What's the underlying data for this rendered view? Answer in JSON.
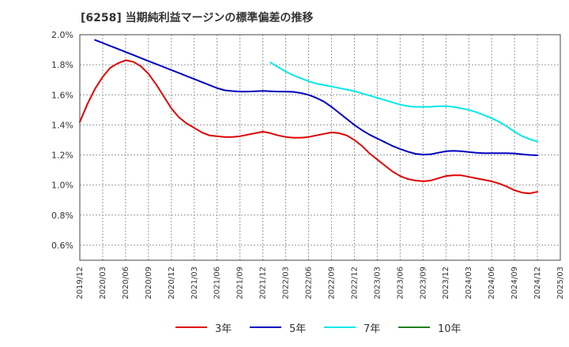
{
  "header": {
    "title": "[6258]  当期純利益マージンの標準偏差の推移"
  },
  "chart_data": {
    "type": "line",
    "title": "[6258]  当期純利益マージンの標準偏差の推移",
    "xlabel": "",
    "ylabel": "",
    "ylim": [
      0.5,
      2.0
    ],
    "yticks": [
      "2.0%",
      "1.8%",
      "1.6%",
      "1.4%",
      "1.2%",
      "1.0%",
      "0.8%",
      "0.6%"
    ],
    "ytick_values": [
      2.0,
      1.8,
      1.6,
      1.4,
      1.2,
      1.0,
      0.8,
      0.6
    ],
    "xticks": [
      "2019/12",
      "2020/03",
      "2020/06",
      "2020/09",
      "2020/12",
      "2021/03",
      "2021/06",
      "2021/09",
      "2021/12",
      "2022/03",
      "2022/06",
      "2022/09",
      "2022/12",
      "2023/03",
      "2023/06",
      "2023/09",
      "2023/12",
      "2024/03",
      "2024/06",
      "2024/09",
      "2024/12",
      "2025/03"
    ],
    "grid": true,
    "legend_position": "bottom",
    "series": [
      {
        "name": "3年",
        "color": "#e00000",
        "points": [
          [
            "2019/12",
            1.42
          ],
          [
            "2020/01",
            1.54
          ],
          [
            "2020/02",
            1.64
          ],
          [
            "2020/03",
            1.72
          ],
          [
            "2020/04",
            1.78
          ],
          [
            "2020/05",
            1.81
          ],
          [
            "2020/06",
            1.83
          ],
          [
            "2020/07",
            1.82
          ],
          [
            "2020/08",
            1.79
          ],
          [
            "2020/09",
            1.74
          ],
          [
            "2020/10",
            1.67
          ],
          [
            "2020/11",
            1.59
          ],
          [
            "2020/12",
            1.51
          ],
          [
            "2021/01",
            1.45
          ],
          [
            "2021/02",
            1.41
          ],
          [
            "2021/03",
            1.38
          ],
          [
            "2021/04",
            1.35
          ],
          [
            "2021/05",
            1.33
          ],
          [
            "2021/06",
            1.325
          ],
          [
            "2021/07",
            1.32
          ],
          [
            "2021/08",
            1.32
          ],
          [
            "2021/09",
            1.325
          ],
          [
            "2021/10",
            1.335
          ],
          [
            "2021/11",
            1.345
          ],
          [
            "2021/12",
            1.355
          ],
          [
            "2022/01",
            1.345
          ],
          [
            "2022/02",
            1.33
          ],
          [
            "2022/03",
            1.32
          ],
          [
            "2022/04",
            1.315
          ],
          [
            "2022/05",
            1.315
          ],
          [
            "2022/06",
            1.32
          ],
          [
            "2022/07",
            1.33
          ],
          [
            "2022/08",
            1.34
          ],
          [
            "2022/09",
            1.35
          ],
          [
            "2022/10",
            1.345
          ],
          [
            "2022/11",
            1.33
          ],
          [
            "2022/12",
            1.3
          ],
          [
            "2023/01",
            1.26
          ],
          [
            "2023/02",
            1.21
          ],
          [
            "2023/03",
            1.17
          ],
          [
            "2023/04",
            1.13
          ],
          [
            "2023/05",
            1.09
          ],
          [
            "2023/06",
            1.06
          ],
          [
            "2023/07",
            1.04
          ],
          [
            "2023/08",
            1.03
          ],
          [
            "2023/09",
            1.025
          ],
          [
            "2023/10",
            1.03
          ],
          [
            "2023/11",
            1.045
          ],
          [
            "2023/12",
            1.06
          ],
          [
            "2024/01",
            1.065
          ],
          [
            "2024/02",
            1.065
          ],
          [
            "2024/03",
            1.055
          ],
          [
            "2024/04",
            1.045
          ],
          [
            "2024/05",
            1.035
          ],
          [
            "2024/06",
            1.025
          ],
          [
            "2024/07",
            1.01
          ],
          [
            "2024/08",
            0.99
          ],
          [
            "2024/09",
            0.965
          ],
          [
            "2024/10",
            0.95
          ],
          [
            "2024/11",
            0.945
          ],
          [
            "2024/12",
            0.955
          ]
        ]
      },
      {
        "name": "5年",
        "color": "#0000c0",
        "points": [
          [
            "2020/02",
            1.965
          ],
          [
            "2020/03",
            1.945
          ],
          [
            "2020/04",
            1.925
          ],
          [
            "2020/05",
            1.905
          ],
          [
            "2020/06",
            1.885
          ],
          [
            "2020/07",
            1.865
          ],
          [
            "2020/08",
            1.845
          ],
          [
            "2020/09",
            1.825
          ],
          [
            "2020/10",
            1.805
          ],
          [
            "2020/11",
            1.785
          ],
          [
            "2020/12",
            1.765
          ],
          [
            "2021/01",
            1.745
          ],
          [
            "2021/02",
            1.725
          ],
          [
            "2021/03",
            1.705
          ],
          [
            "2021/04",
            1.685
          ],
          [
            "2021/05",
            1.665
          ],
          [
            "2021/06",
            1.645
          ],
          [
            "2021/07",
            1.63
          ],
          [
            "2021/08",
            1.625
          ],
          [
            "2021/09",
            1.622
          ],
          [
            "2021/10",
            1.622
          ],
          [
            "2021/11",
            1.624
          ],
          [
            "2021/12",
            1.626
          ],
          [
            "2022/01",
            1.624
          ],
          [
            "2022/02",
            1.622
          ],
          [
            "2022/03",
            1.622
          ],
          [
            "2022/04",
            1.62
          ],
          [
            "2022/05",
            1.612
          ],
          [
            "2022/06",
            1.6
          ],
          [
            "2022/07",
            1.58
          ],
          [
            "2022/08",
            1.555
          ],
          [
            "2022/09",
            1.52
          ],
          [
            "2022/10",
            1.48
          ],
          [
            "2022/11",
            1.44
          ],
          [
            "2022/12",
            1.4
          ],
          [
            "2023/01",
            1.365
          ],
          [
            "2023/02",
            1.335
          ],
          [
            "2023/03",
            1.31
          ],
          [
            "2023/04",
            1.285
          ],
          [
            "2023/05",
            1.26
          ],
          [
            "2023/06",
            1.24
          ],
          [
            "2023/07",
            1.222
          ],
          [
            "2023/08",
            1.208
          ],
          [
            "2023/09",
            1.203
          ],
          [
            "2023/10",
            1.205
          ],
          [
            "2023/11",
            1.215
          ],
          [
            "2023/12",
            1.225
          ],
          [
            "2024/01",
            1.228
          ],
          [
            "2024/02",
            1.225
          ],
          [
            "2024/03",
            1.22
          ],
          [
            "2024/04",
            1.215
          ],
          [
            "2024/05",
            1.212
          ],
          [
            "2024/06",
            1.212
          ],
          [
            "2024/07",
            1.212
          ],
          [
            "2024/08",
            1.212
          ],
          [
            "2024/09",
            1.21
          ],
          [
            "2024/10",
            1.205
          ],
          [
            "2024/11",
            1.2
          ],
          [
            "2024/12",
            1.198
          ]
        ]
      },
      {
        "name": "7年",
        "color": "#00e8e8",
        "points": [
          [
            "2022/01",
            1.815
          ],
          [
            "2022/02",
            1.785
          ],
          [
            "2022/03",
            1.755
          ],
          [
            "2022/04",
            1.73
          ],
          [
            "2022/05",
            1.71
          ],
          [
            "2022/06",
            1.69
          ],
          [
            "2022/07",
            1.675
          ],
          [
            "2022/08",
            1.665
          ],
          [
            "2022/09",
            1.655
          ],
          [
            "2022/10",
            1.645
          ],
          [
            "2022/11",
            1.635
          ],
          [
            "2022/12",
            1.625
          ],
          [
            "2023/01",
            1.61
          ],
          [
            "2023/02",
            1.595
          ],
          [
            "2023/03",
            1.58
          ],
          [
            "2023/04",
            1.565
          ],
          [
            "2023/05",
            1.55
          ],
          [
            "2023/06",
            1.535
          ],
          [
            "2023/07",
            1.525
          ],
          [
            "2023/08",
            1.52
          ],
          [
            "2023/09",
            1.52
          ],
          [
            "2023/10",
            1.52
          ],
          [
            "2023/11",
            1.525
          ],
          [
            "2023/12",
            1.525
          ],
          [
            "2024/01",
            1.52
          ],
          [
            "2024/02",
            1.51
          ],
          [
            "2024/03",
            1.5
          ],
          [
            "2024/04",
            1.485
          ],
          [
            "2024/05",
            1.465
          ],
          [
            "2024/06",
            1.445
          ],
          [
            "2024/07",
            1.42
          ],
          [
            "2024/08",
            1.39
          ],
          [
            "2024/09",
            1.355
          ],
          [
            "2024/10",
            1.325
          ],
          [
            "2024/11",
            1.305
          ],
          [
            "2024/12",
            1.29
          ]
        ]
      },
      {
        "name": "10年",
        "color": "#208020",
        "points": []
      }
    ]
  }
}
